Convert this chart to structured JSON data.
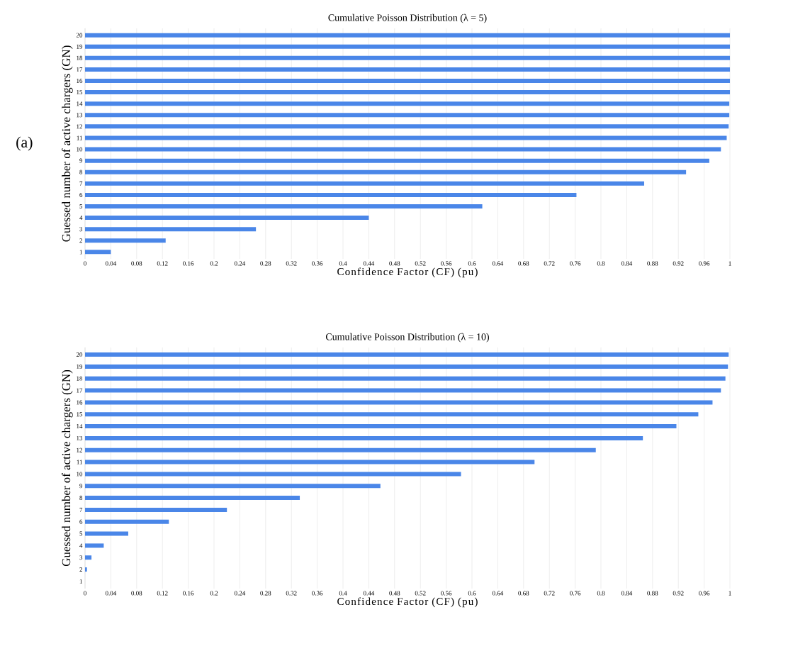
{
  "chart_data": [
    {
      "type": "bar",
      "orientation": "horizontal",
      "title": "Cumulative Poisson Distribution (λ = 5)",
      "xlabel": "Confidence Factor (CF) (pu)",
      "ylabel": "Guessed number of active chargers (GN)",
      "annotations": [
        "(a)"
      ],
      "categories": [
        "20",
        "19",
        "18",
        "17",
        "16",
        "15",
        "14",
        "13",
        "12",
        "11",
        "10",
        "9",
        "8",
        "7",
        "6",
        "5",
        "4",
        "3",
        "2",
        "1"
      ],
      "values": [
        1.0,
        1.0,
        1.0,
        1.0,
        1.0,
        1.0,
        0.999,
        0.999,
        0.998,
        0.995,
        0.986,
        0.968,
        0.932,
        0.867,
        0.762,
        0.616,
        0.44,
        0.265,
        0.125,
        0.04
      ],
      "color": "#4a86e8",
      "xlim": [
        0,
        1
      ],
      "xticks": [
        0,
        0.04,
        0.08,
        0.12,
        0.16,
        0.2,
        0.24,
        0.28,
        0.32,
        0.36,
        0.4,
        0.44,
        0.48,
        0.52,
        0.56,
        0.6,
        0.64,
        0.68,
        0.72,
        0.76,
        0.8,
        0.84,
        0.88,
        0.92,
        0.96,
        1
      ],
      "grid": "x"
    },
    {
      "type": "bar",
      "orientation": "horizontal",
      "title": "Cumulative Poisson Distribution (λ = 10)",
      "xlabel": "Confidence Factor (CF) (pu)",
      "ylabel": "Guessed number of active chargers (GN)",
      "categories": [
        "20",
        "19",
        "18",
        "17",
        "16",
        "15",
        "14",
        "13",
        "12",
        "11",
        "10",
        "9",
        "8",
        "7",
        "6",
        "5",
        "4",
        "3",
        "2",
        "1"
      ],
      "values": [
        0.998,
        0.997,
        0.993,
        0.986,
        0.973,
        0.951,
        0.917,
        0.865,
        0.792,
        0.697,
        0.583,
        0.458,
        0.333,
        0.22,
        0.13,
        0.067,
        0.029,
        0.01,
        0.003,
        0
      ],
      "color": "#4a86e8",
      "xlim": [
        0,
        1
      ],
      "xticks": [
        0,
        0.04,
        0.08,
        0.12,
        0.16,
        0.2,
        0.24,
        0.28,
        0.32,
        0.36,
        0.4,
        0.44,
        0.48,
        0.52,
        0.56,
        0.6,
        0.64,
        0.68,
        0.72,
        0.76,
        0.8,
        0.84,
        0.88,
        0.92,
        0.96,
        1
      ],
      "grid": "x"
    }
  ]
}
